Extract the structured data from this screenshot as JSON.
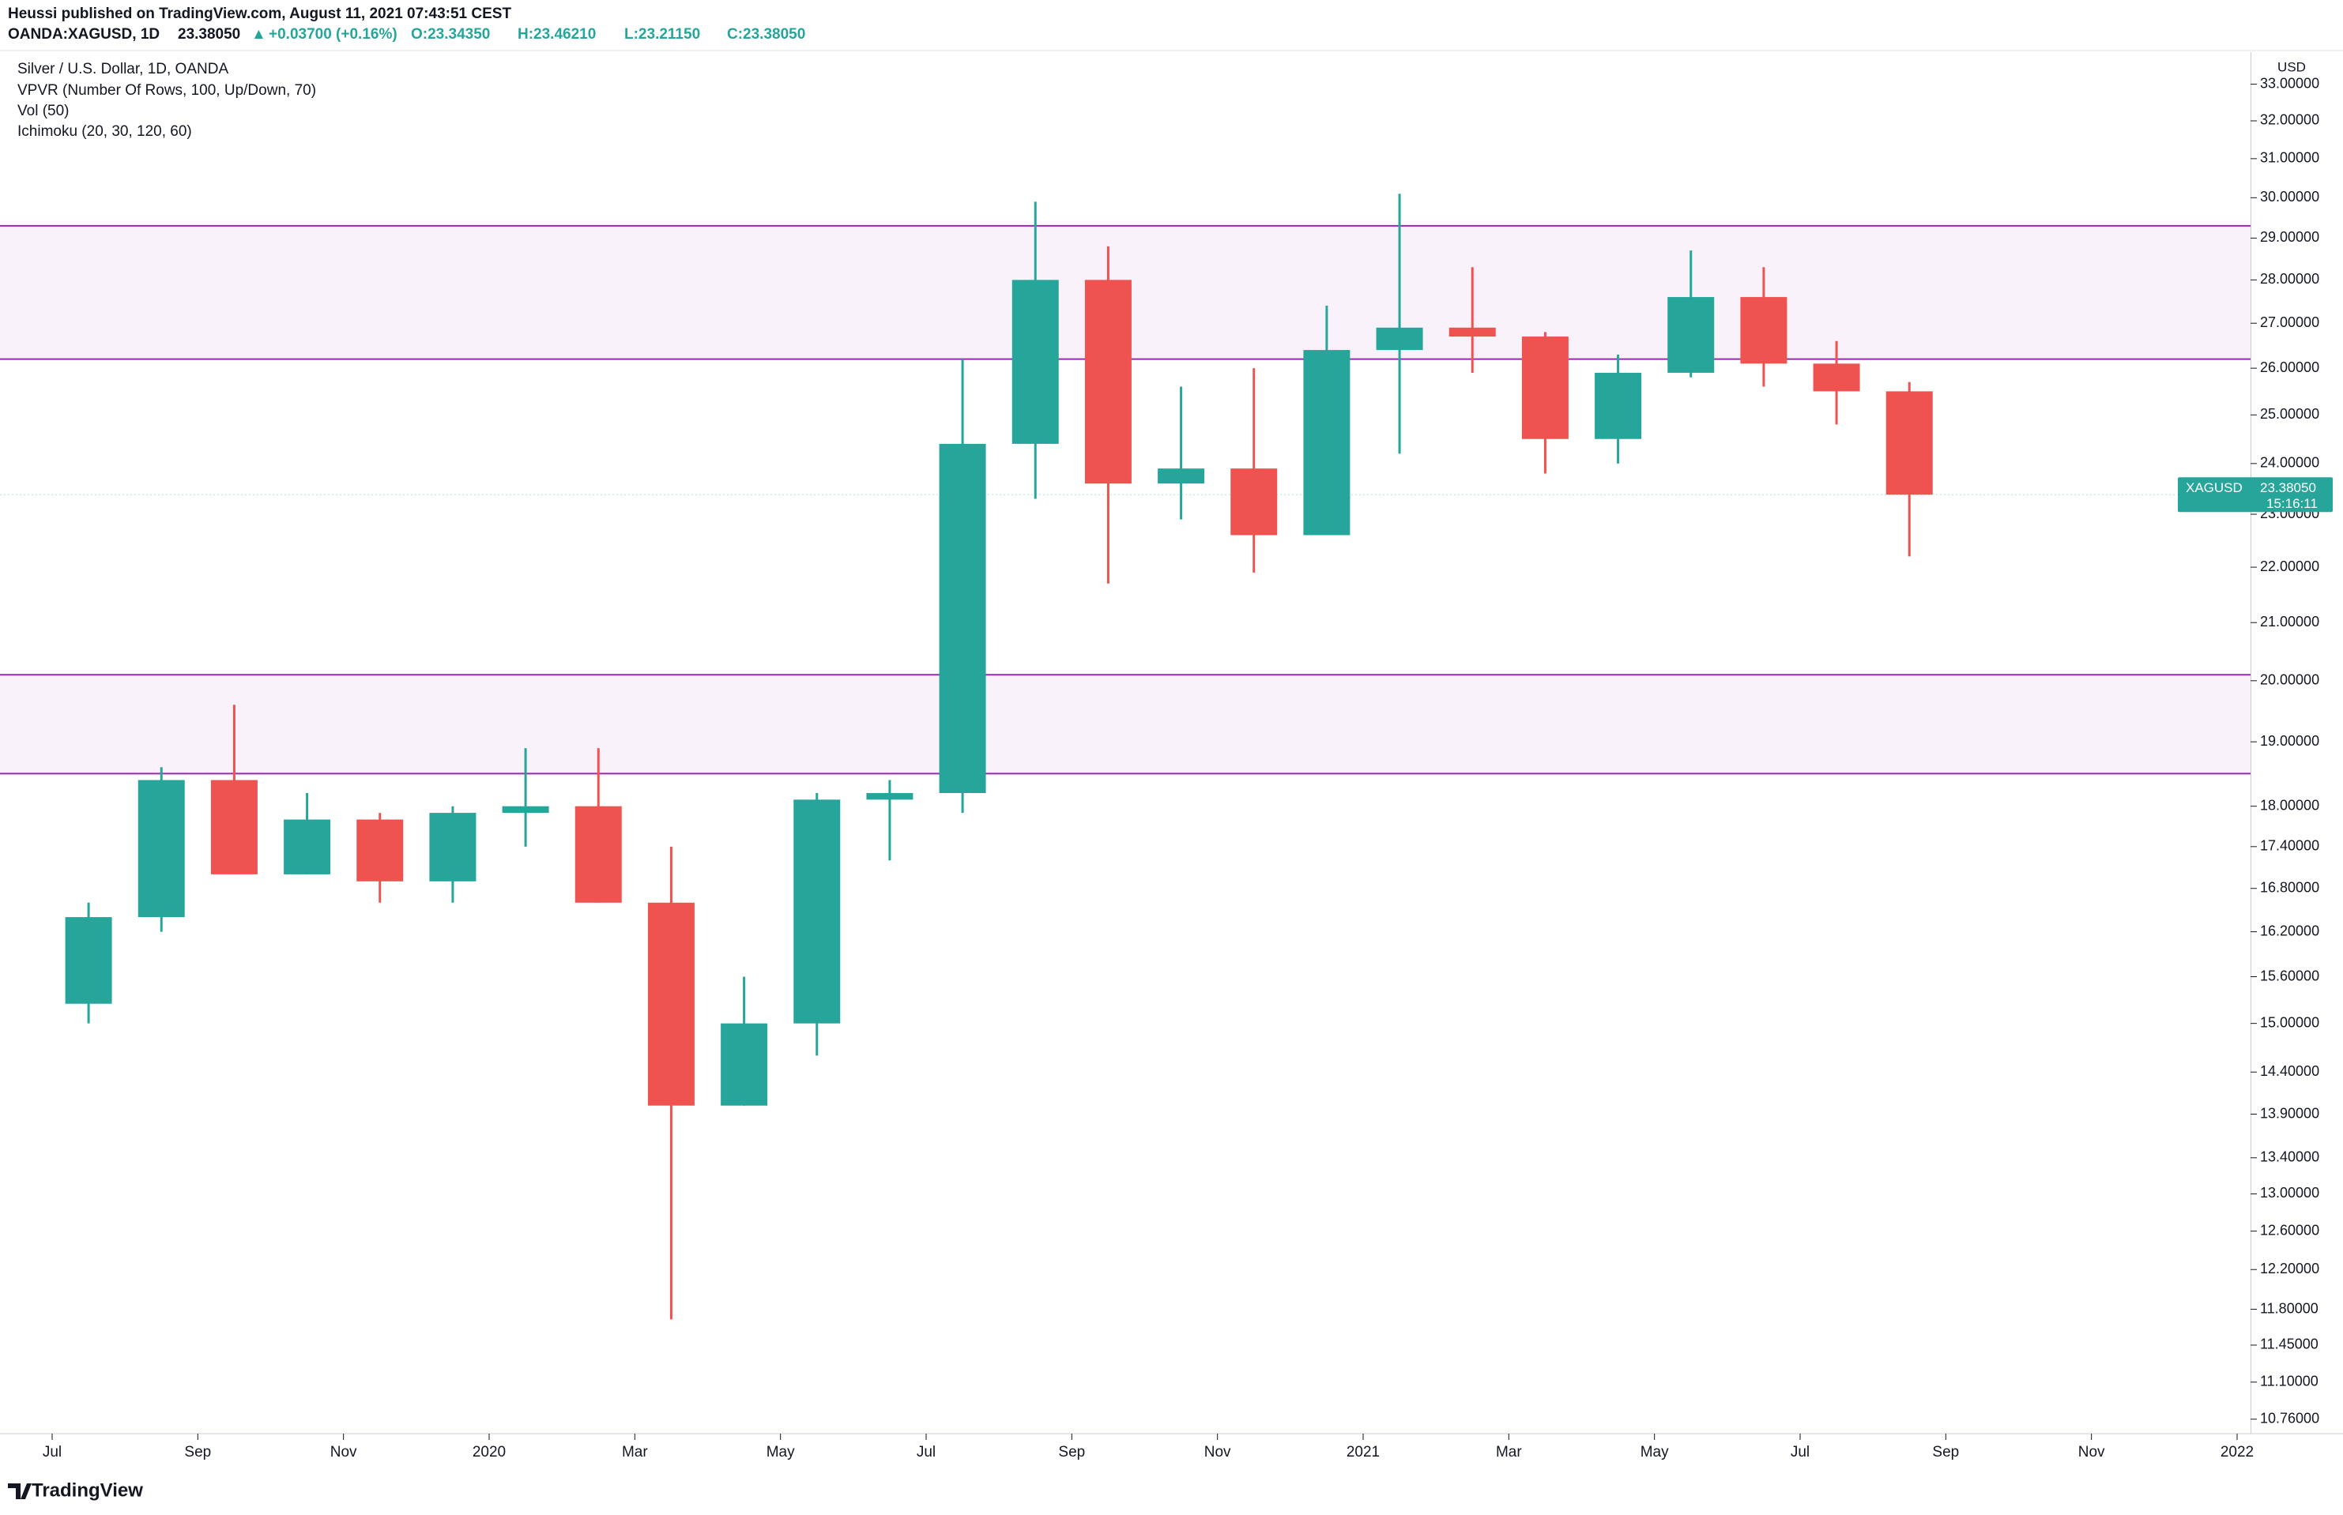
{
  "header": {
    "publisher": "Heussi published on TradingView.com, August 11, 2021 07:43:51 CEST",
    "symbol": "OANDA:XAGUSD, 1D",
    "last": "23.38050",
    "arrow": "▲",
    "change": "+0.03700 (+0.16%)",
    "open": "O:23.34350",
    "high": "H:23.46210",
    "low": "L:23.21150",
    "close": "C:23.38050"
  },
  "legend": [
    "Silver / U.S. Dollar, 1D, OANDA",
    "VPVR (Number Of Rows, 100, Up/Down, 70)",
    "Vol (50)",
    "Ichimoku (20, 30, 120, 60)"
  ],
  "currency": "USD",
  "price_tag": {
    "symbol": "XAGUSD",
    "price": "23.38050",
    "countdown": "15:16:11"
  },
  "logo": "TradingView",
  "chart_data": {
    "type": "candlestick",
    "log_scale": true,
    "up_color": "#26a69a",
    "down_color": "#ef5350",
    "zone_color": "#9c27b0",
    "zones": [
      [
        26.2,
        29.3
      ],
      [
        18.5,
        20.1
      ]
    ],
    "x": [
      "2019-07",
      "2019-08",
      "2019-09",
      "2019-10",
      "2019-11",
      "2019-12",
      "2020-01",
      "2020-02",
      "2020-03",
      "2020-04",
      "2020-05",
      "2020-06",
      "2020-07",
      "2020-08",
      "2020-09",
      "2020-10",
      "2020-11",
      "2020-12",
      "2021-01",
      "2021-02",
      "2021-03",
      "2021-04",
      "2021-05",
      "2021-06",
      "2021-07",
      "2021-08"
    ],
    "open": [
      15.25,
      16.4,
      18.4,
      17.0,
      17.8,
      16.9,
      17.9,
      18.0,
      16.6,
      14.0,
      15.0,
      18.1,
      18.2,
      24.4,
      28.0,
      23.6,
      23.9,
      22.6,
      26.4,
      26.9,
      26.7,
      24.5,
      25.9,
      27.6,
      26.1,
      25.5
    ],
    "high": [
      16.6,
      18.6,
      19.6,
      18.2,
      17.9,
      18.0,
      18.9,
      18.9,
      17.4,
      15.6,
      18.2,
      18.4,
      26.2,
      29.9,
      28.8,
      25.6,
      26.0,
      27.4,
      30.1,
      28.3,
      26.8,
      26.3,
      28.7,
      28.3,
      26.6,
      25.7
    ],
    "low": [
      15.0,
      16.2,
      17.0,
      17.0,
      16.6,
      16.6,
      17.4,
      16.6,
      11.7,
      14.0,
      14.6,
      17.2,
      17.9,
      23.3,
      21.7,
      22.9,
      21.9,
      22.6,
      24.2,
      25.9,
      23.8,
      24.0,
      25.8,
      25.6,
      24.8,
      22.2
    ],
    "close": [
      16.4,
      18.4,
      17.0,
      17.8,
      16.9,
      17.9,
      18.0,
      16.6,
      14.0,
      15.0,
      18.1,
      18.2,
      24.4,
      28.0,
      23.6,
      23.9,
      22.6,
      26.4,
      26.9,
      26.7,
      24.5,
      25.9,
      27.6,
      26.1,
      25.5,
      23.3805
    ],
    "xlim": [
      "2019-07",
      "2022-01"
    ],
    "xticks": [
      {
        "value": "2019-07",
        "label": "Jul"
      },
      {
        "value": "2019-09",
        "label": "Sep"
      },
      {
        "value": "2019-11",
        "label": "Nov"
      },
      {
        "value": "2020-01",
        "label": "2020"
      },
      {
        "value": "2020-03",
        "label": "Mar"
      },
      {
        "value": "2020-05",
        "label": "May"
      },
      {
        "value": "2020-07",
        "label": "Jul"
      },
      {
        "value": "2020-09",
        "label": "Sep"
      },
      {
        "value": "2020-11",
        "label": "Nov"
      },
      {
        "value": "2021-01",
        "label": "2021"
      },
      {
        "value": "2021-03",
        "label": "Mar"
      },
      {
        "value": "2021-05",
        "label": "May"
      },
      {
        "value": "2021-07",
        "label": "Jul"
      },
      {
        "value": "2021-09",
        "label": "Sep"
      },
      {
        "value": "2021-11",
        "label": "Nov"
      },
      {
        "value": "2022-01",
        "label": "2022"
      }
    ],
    "ylim": [
      10.63,
      33.9
    ],
    "yticks": [
      {
        "value": 10.76,
        "label": "10.76000"
      },
      {
        "value": 11.1,
        "label": "11.10000"
      },
      {
        "value": 11.45,
        "label": "11.45000"
      },
      {
        "value": 11.8,
        "label": "11.80000"
      },
      {
        "value": 12.2,
        "label": "12.20000"
      },
      {
        "value": 12.6,
        "label": "12.60000"
      },
      {
        "value": 13,
        "label": "13.00000"
      },
      {
        "value": 13.4,
        "label": "13.40000"
      },
      {
        "value": 13.9,
        "label": "13.90000"
      },
      {
        "value": 14.4,
        "label": "14.40000"
      },
      {
        "value": 15,
        "label": "15.00000"
      },
      {
        "value": 15.6,
        "label": "15.60000"
      },
      {
        "value": 16.2,
        "label": "16.20000"
      },
      {
        "value": 16.8,
        "label": "16.80000"
      },
      {
        "value": 17.4,
        "label": "17.40000"
      },
      {
        "value": 18,
        "label": "18.00000"
      },
      {
        "value": 19,
        "label": "19.00000"
      },
      {
        "value": 20,
        "label": "20.00000"
      },
      {
        "value": 21,
        "label": "21.00000"
      },
      {
        "value": 22,
        "label": "22.00000"
      },
      {
        "value": 23,
        "label": "23.00000"
      },
      {
        "value": 24,
        "label": "24.00000"
      },
      {
        "value": 25,
        "label": "25.00000"
      },
      {
        "value": 26,
        "label": "26.00000"
      },
      {
        "value": 27,
        "label": "27.00000"
      },
      {
        "value": 28,
        "label": "28.00000"
      },
      {
        "value": 29,
        "label": "29.00000"
      },
      {
        "value": 30,
        "label": "30.00000"
      },
      {
        "value": 31,
        "label": "31.00000"
      },
      {
        "value": 32,
        "label": "32.00000"
      },
      {
        "value": 33,
        "label": "33.00000"
      }
    ]
  }
}
